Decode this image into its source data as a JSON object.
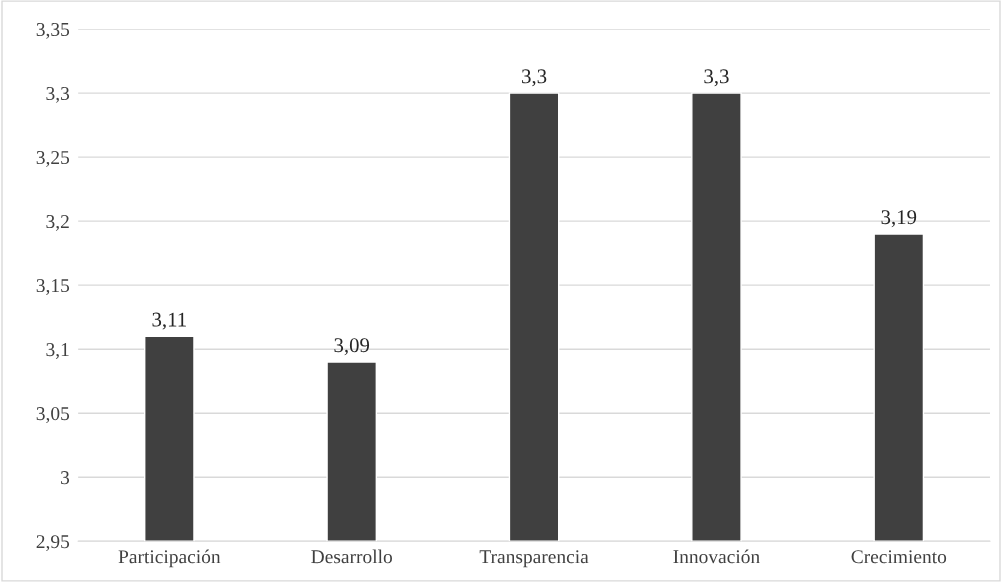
{
  "chart_data": {
    "type": "bar",
    "categories": [
      "Participación",
      "Desarrollo",
      "Transparencia",
      "Innovación",
      "Crecimiento"
    ],
    "values": [
      3.11,
      3.09,
      3.3,
      3.3,
      3.19
    ],
    "value_labels": [
      "3,11",
      "3,09",
      "3,3",
      "3,3",
      "3,19"
    ],
    "color": "#404040",
    "ylim": [
      2.95,
      3.35
    ],
    "yticks": [
      {
        "value": 2.95,
        "label": "2,95"
      },
      {
        "value": 3.0,
        "label": "3"
      },
      {
        "value": 3.05,
        "label": "3,05"
      },
      {
        "value": 3.1,
        "label": "3,1"
      },
      {
        "value": 3.15,
        "label": "3,15"
      },
      {
        "value": 3.2,
        "label": "3,2"
      },
      {
        "value": 3.25,
        "label": "3,25"
      },
      {
        "value": 3.3,
        "label": "3,3"
      },
      {
        "value": 3.35,
        "label": "3,35"
      }
    ],
    "grid": "y"
  }
}
